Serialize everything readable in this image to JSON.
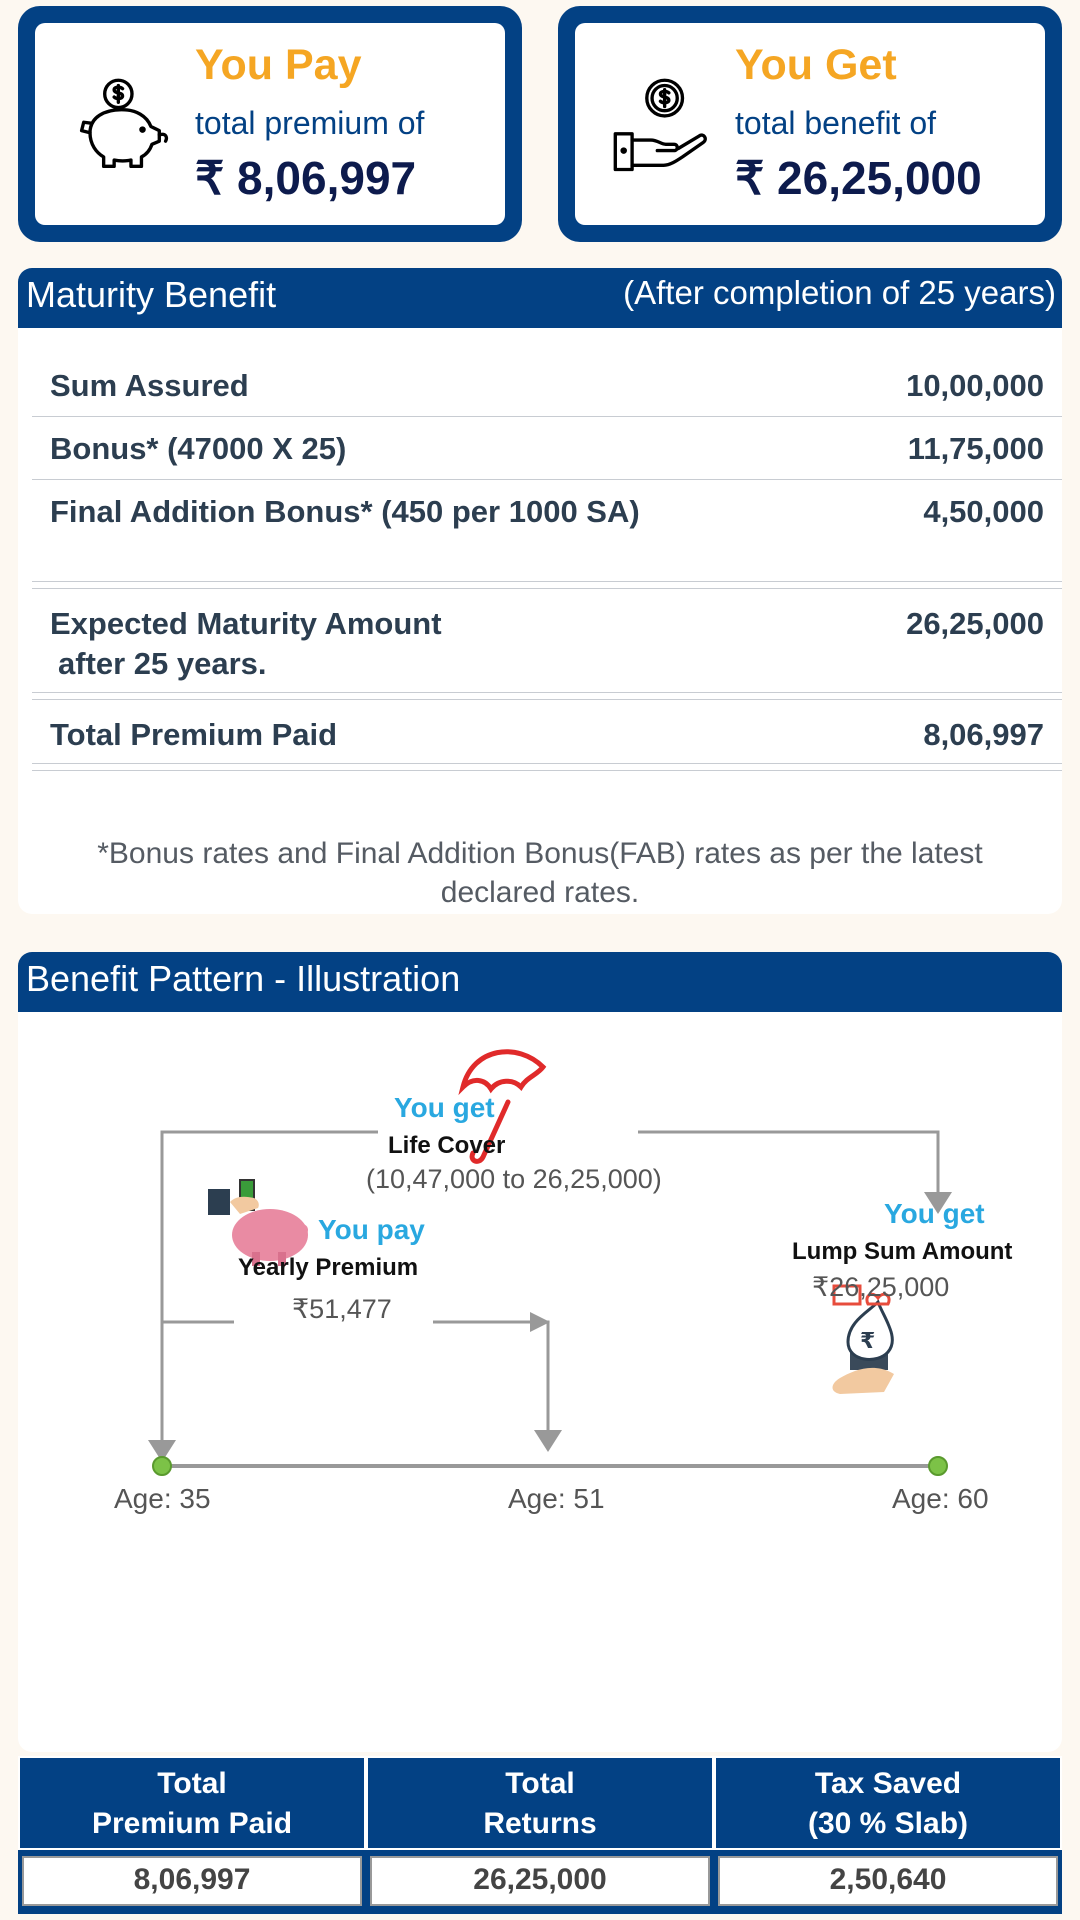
{
  "pay_card": {
    "title": "You Pay",
    "subtitle": "total premium of",
    "amount": "₹ 8,06,997"
  },
  "get_card": {
    "title": "You Get",
    "subtitle": "total benefit of",
    "amount": "₹ 26,25,000"
  },
  "maturity": {
    "title": "Maturity Benefit",
    "subtitle": "(After completion of 25 years)",
    "rows": [
      {
        "label": "Sum Assured",
        "value": "10,00,000"
      },
      {
        "label": "Bonus* (47000 X 25)",
        "value": "11,75,000"
      },
      {
        "label": "Final Addition Bonus* (450 per 1000 SA)",
        "value": "4,50,000"
      }
    ],
    "expected": {
      "label_line1": "Expected Maturity Amount",
      "label_line2": "after 25 years.",
      "value": "26,25,000"
    },
    "total_paid": {
      "label": "Total Premium Paid",
      "value": "8,06,997"
    },
    "note": "*Bonus rates and Final Addition Bonus(FAB) rates as per the latest declared rates."
  },
  "illustration": {
    "title": "Benefit Pattern - Illustration",
    "life_cover": {
      "you_get": "You get",
      "label": "Life Cover",
      "range": "(10,47,000 to 26,25,000)"
    },
    "premium": {
      "you_pay": "You pay",
      "label": "Yearly Premium",
      "amount": "₹51,477"
    },
    "lump_sum": {
      "you_get": "You get",
      "label": "Lump Sum Amount",
      "amount": "₹26,25,000"
    },
    "ages": [
      "Age: 35",
      "Age: 51",
      "Age: 60"
    ],
    "icons": [
      "umbrella-icon",
      "piggy-bank-icon",
      "money-bag-icon"
    ]
  },
  "summary": {
    "headers": [
      {
        "line1": "Total",
        "line2": "Premium Paid"
      },
      {
        "line1": "Total",
        "line2": "Returns"
      },
      {
        "line1": "Tax Saved",
        "line2": "(30 % Slab)"
      }
    ],
    "values": [
      "8,06,997",
      "26,25,000",
      "2,50,640"
    ]
  },
  "colors": {
    "primary": "#034184",
    "accent": "#f5a623",
    "sky": "#29a8e0",
    "red": "#e02a2a"
  }
}
